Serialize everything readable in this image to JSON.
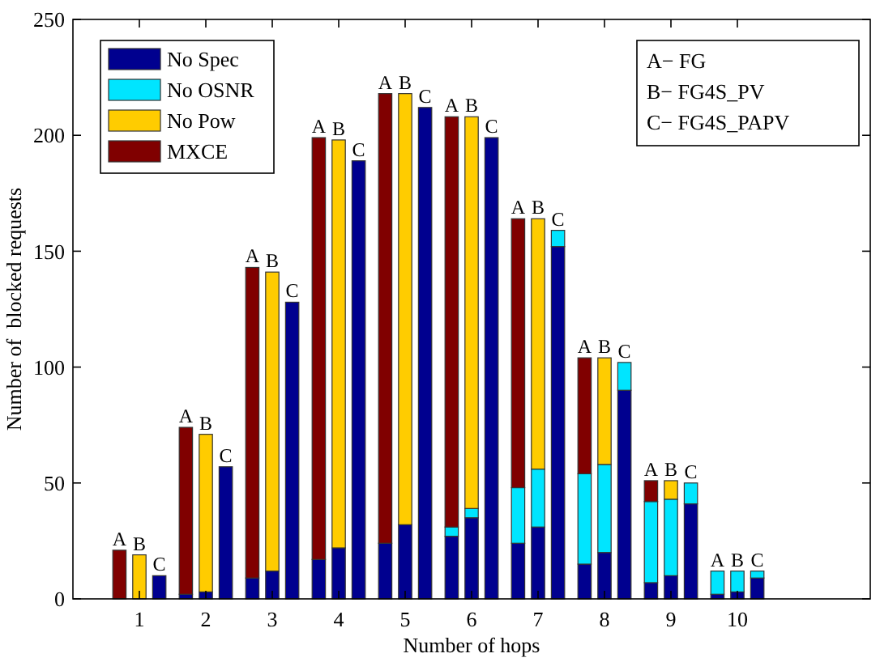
{
  "chart_data": {
    "type": "bar",
    "stacked": true,
    "xlabel": "Number of hops",
    "ylabel": "Number of  blocked requests",
    "xlim": [
      0,
      12
    ],
    "xticks": [
      1,
      2,
      3,
      4,
      5,
      6,
      7,
      8,
      9,
      10
    ],
    "ylim": [
      0,
      250
    ],
    "yticks": [
      0,
      50,
      100,
      150,
      200,
      250
    ],
    "legend": "top left",
    "series": [
      {
        "name": "No Spec",
        "color": "#00008f",
        "x": [
          0.7,
          1,
          1.3,
          1.7,
          2,
          2.3,
          2.7,
          3,
          3.3,
          3.7,
          4,
          4.3,
          4.7,
          5,
          5.3,
          5.7,
          6,
          6.3,
          6.7,
          7,
          7.3,
          7.7,
          8,
          8.3,
          8.7,
          9,
          9.3,
          9.7,
          10,
          10.3
        ],
        "values": [
          0,
          0,
          10,
          2,
          3,
          57,
          9,
          12,
          128,
          17,
          22,
          189,
          24,
          32,
          212,
          27,
          35,
          199,
          24,
          31,
          152,
          15,
          20,
          90,
          7,
          10,
          41,
          2,
          3,
          9
        ]
      },
      {
        "name": "No OSNR",
        "color": "#00e5ff",
        "x": [
          0.7,
          1,
          1.3,
          1.7,
          2,
          2.3,
          2.7,
          3,
          3.3,
          3.7,
          4,
          4.3,
          4.7,
          5,
          5.3,
          5.7,
          6,
          6.3,
          6.7,
          7,
          7.3,
          7.7,
          8,
          8.3,
          8.7,
          9,
          9.3,
          9.7,
          10,
          10.3
        ],
        "values": [
          0,
          0,
          0,
          0,
          0,
          0,
          0,
          0,
          0,
          0,
          0,
          0,
          0,
          0,
          0,
          4,
          4,
          0,
          24,
          25,
          7,
          39,
          38,
          12,
          35,
          33,
          9,
          10,
          9,
          3
        ]
      },
      {
        "name": "No Pow",
        "color": "#ffcc00",
        "x": [
          0.7,
          1,
          1.3,
          1.7,
          2,
          2.3,
          2.7,
          3,
          3.3,
          3.7,
          4,
          4.3,
          4.7,
          5,
          5.3,
          5.7,
          6,
          6.3,
          6.7,
          7,
          7.3,
          7.7,
          8,
          8.3,
          8.7,
          9,
          9.3,
          9.7,
          10,
          10.3
        ],
        "values": [
          0,
          19,
          0,
          0,
          68,
          0,
          0,
          129,
          0,
          0,
          176,
          0,
          0,
          186,
          0,
          0,
          169,
          0,
          0,
          108,
          0,
          0,
          46,
          0,
          0,
          8,
          0,
          0,
          0,
          0
        ]
      },
      {
        "name": "MXCE",
        "color": "#800000",
        "x": [
          0.7,
          1,
          1.3,
          1.7,
          2,
          2.3,
          2.7,
          3,
          3.3,
          3.7,
          4,
          4.3,
          4.7,
          5,
          5.3,
          5.7,
          6,
          6.3,
          6.7,
          7,
          7.3,
          7.7,
          8,
          8.3,
          8.7,
          9,
          9.3,
          9.7,
          10,
          10.3
        ],
        "values": [
          21,
          0,
          0,
          72,
          0,
          0,
          134,
          0,
          0,
          182,
          0,
          0,
          194,
          0,
          0,
          177,
          0,
          0,
          116,
          0,
          0,
          50,
          0,
          0,
          9,
          0,
          0,
          0,
          0,
          0
        ]
      }
    ],
    "annotations": [
      "A− FG",
      "B− FG4S_PV",
      "C− FG4S_PAPV",
      {
        "text": "A",
        "x": 0.7,
        "y": 21
      },
      {
        "text": "B",
        "x": 1,
        "y": 19
      },
      {
        "text": "C",
        "x": 1.3,
        "y": 10
      },
      {
        "text": "A",
        "x": 1.7,
        "y": 74
      },
      {
        "text": "B",
        "x": 2,
        "y": 71
      },
      {
        "text": "C",
        "x": 2.3,
        "y": 57
      },
      {
        "text": "A",
        "x": 2.7,
        "y": 143
      },
      {
        "text": "B",
        "x": 3,
        "y": 141
      },
      {
        "text": "C",
        "x": 3.3,
        "y": 128
      },
      {
        "text": "A",
        "x": 3.7,
        "y": 199
      },
      {
        "text": "B",
        "x": 4,
        "y": 198
      },
      {
        "text": "C",
        "x": 4.3,
        "y": 189
      },
      {
        "text": "A",
        "x": 4.7,
        "y": 218
      },
      {
        "text": "B",
        "x": 5,
        "y": 218
      },
      {
        "text": "C",
        "x": 5.3,
        "y": 212
      },
      {
        "text": "A",
        "x": 5.7,
        "y": 208
      },
      {
        "text": "B",
        "x": 6,
        "y": 208
      },
      {
        "text": "C",
        "x": 6.3,
        "y": 199
      },
      {
        "text": "A",
        "x": 6.7,
        "y": 164
      },
      {
        "text": "B",
        "x": 7,
        "y": 164
      },
      {
        "text": "C",
        "x": 7.3,
        "y": 159
      },
      {
        "text": "A",
        "x": 7.7,
        "y": 104
      },
      {
        "text": "B",
        "x": 8,
        "y": 104
      },
      {
        "text": "C",
        "x": 8.3,
        "y": 102
      },
      {
        "text": "A",
        "x": 8.7,
        "y": 51
      },
      {
        "text": "B",
        "x": 9,
        "y": 51
      },
      {
        "text": "C",
        "x": 9.3,
        "y": 50
      },
      {
        "text": "A",
        "x": 9.7,
        "y": 12
      },
      {
        "text": "B",
        "x": 10,
        "y": 12
      },
      {
        "text": "C",
        "x": 10.3,
        "y": 12
      }
    ]
  }
}
